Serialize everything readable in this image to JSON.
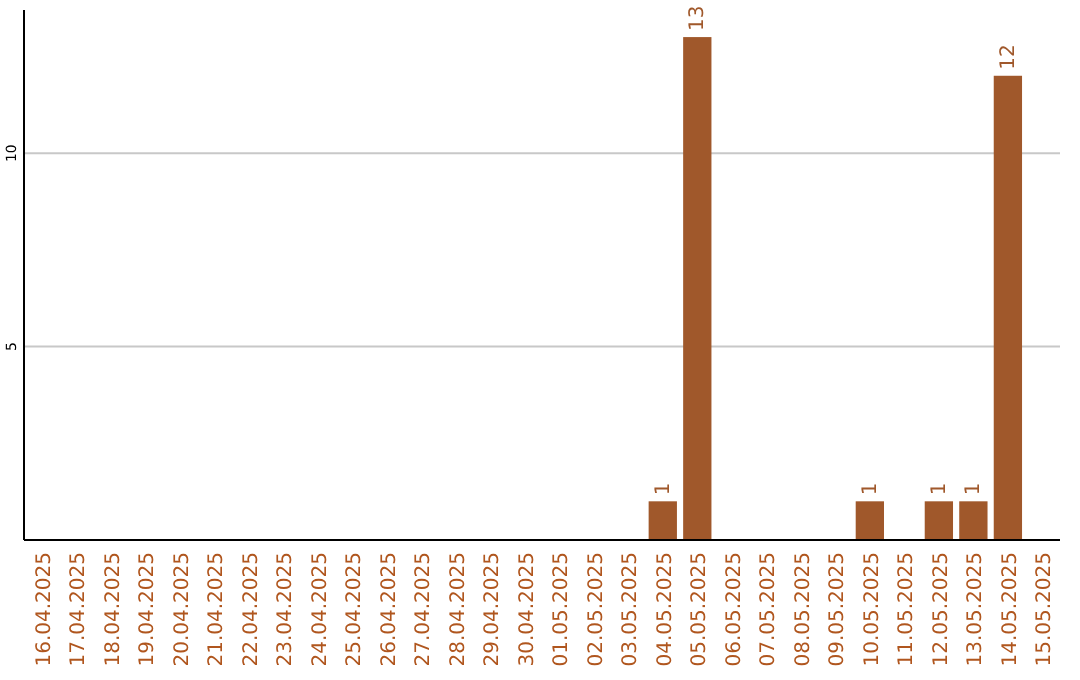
{
  "chart_data": {
    "type": "bar",
    "categories": [
      "16.04.2025",
      "17.04.2025",
      "18.04.2025",
      "19.04.2025",
      "20.04.2025",
      "21.04.2025",
      "22.04.2025",
      "23.04.2025",
      "24.04.2025",
      "25.04.2025",
      "26.04.2025",
      "27.04.2025",
      "28.04.2025",
      "29.04.2025",
      "30.04.2025",
      "01.05.2025",
      "02.05.2025",
      "03.05.2025",
      "04.05.2025",
      "05.05.2025",
      "06.05.2025",
      "07.05.2025",
      "08.05.2025",
      "09.05.2025",
      "10.05.2025",
      "11.05.2025",
      "12.05.2025",
      "13.05.2025",
      "14.05.2025",
      "15.05.2025"
    ],
    "values": [
      0,
      0,
      0,
      0,
      0,
      0,
      0,
      0,
      0,
      0,
      0,
      0,
      0,
      0,
      0,
      0,
      0,
      0,
      1,
      13,
      0,
      0,
      0,
      0,
      1,
      0,
      1,
      1,
      12,
      0
    ],
    "value_labels": [
      null,
      null,
      null,
      null,
      null,
      null,
      null,
      null,
      null,
      null,
      null,
      null,
      null,
      null,
      null,
      null,
      null,
      null,
      "1",
      "13",
      null,
      null,
      null,
      null,
      "1",
      null,
      "1",
      "1",
      "12",
      null
    ],
    "color": "#a0582b",
    "ylim": [
      0,
      13.7
    ],
    "yticks": [
      5,
      10
    ],
    "grid": "y"
  }
}
